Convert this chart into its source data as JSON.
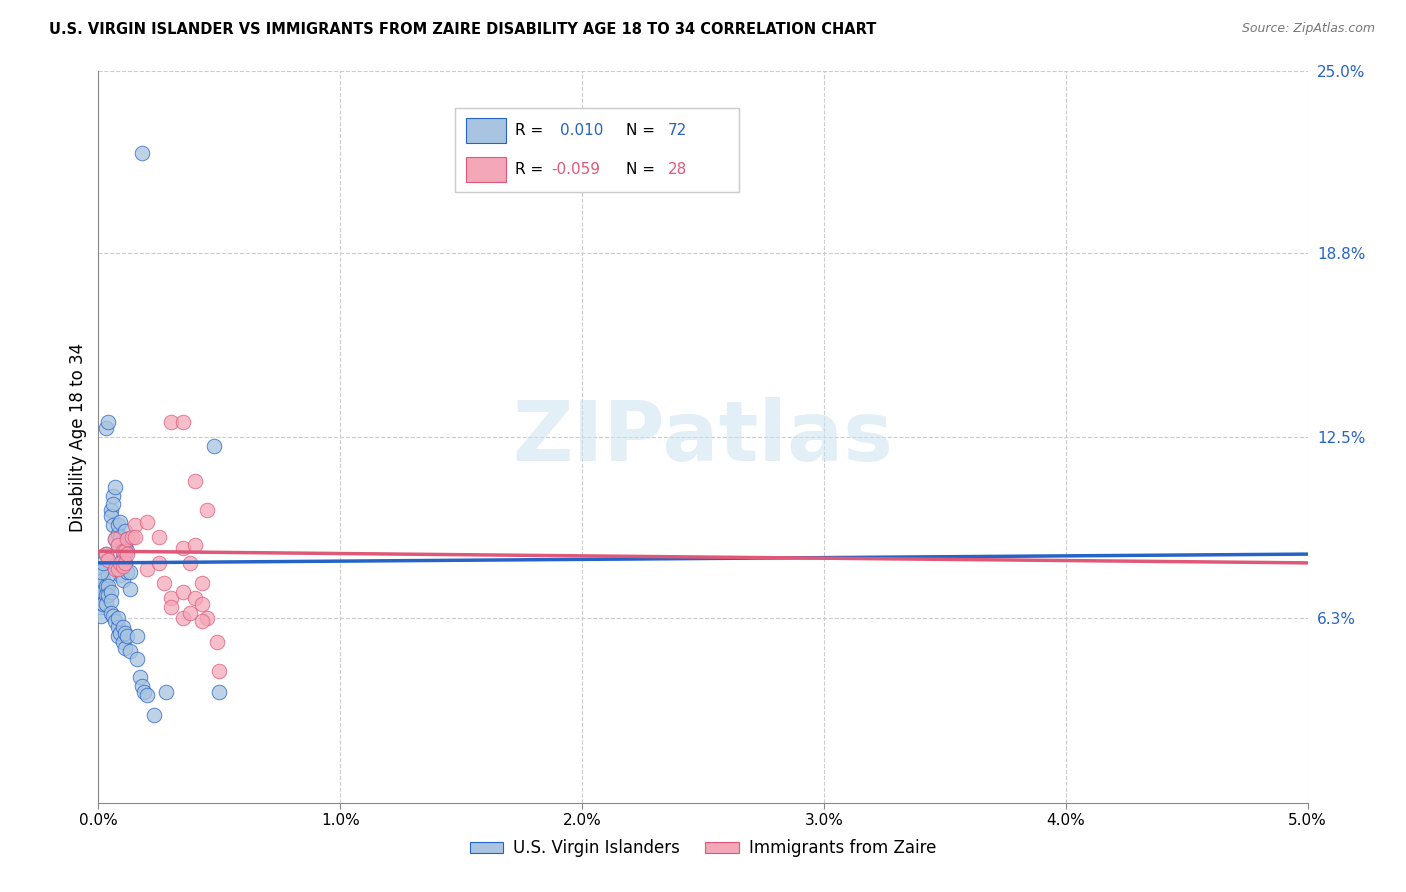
{
  "title": "U.S. VIRGIN ISLANDER VS IMMIGRANTS FROM ZAIRE DISABILITY AGE 18 TO 34 CORRELATION CHART",
  "source": "Source: ZipAtlas.com",
  "ylabel": "Disability Age 18 to 34",
  "xlim": [
    0.0,
    0.05
  ],
  "ylim": [
    0.0,
    0.25
  ],
  "x_ticks": [
    0.0,
    0.01,
    0.02,
    0.03,
    0.04,
    0.05
  ],
  "x_tick_labels": [
    "0.0%",
    "1.0%",
    "2.0%",
    "3.0%",
    "4.0%",
    "5.0%"
  ],
  "y_tick_labels_right": [
    "6.3%",
    "12.5%",
    "18.8%",
    "25.0%"
  ],
  "y_ticks_right": [
    0.063,
    0.125,
    0.188,
    0.25
  ],
  "watermark": "ZIPatlas",
  "color_blue": "#a8c4e0",
  "color_pink": "#f4a7b9",
  "line_color_blue": "#2563c7",
  "line_color_pink": "#e05878",
  "blue_scatter": [
    [
      0.0003,
      0.085
    ],
    [
      0.0004,
      0.083
    ],
    [
      0.0003,
      0.128
    ],
    [
      0.0004,
      0.13
    ],
    [
      0.0005,
      0.1
    ],
    [
      0.0005,
      0.098
    ],
    [
      0.0006,
      0.105
    ],
    [
      0.0006,
      0.102
    ],
    [
      0.0006,
      0.095
    ],
    [
      0.0007,
      0.108
    ],
    [
      0.0007,
      0.09
    ],
    [
      0.0008,
      0.092
    ],
    [
      0.0008,
      0.088
    ],
    [
      0.0008,
      0.095
    ],
    [
      0.0009,
      0.096
    ],
    [
      0.0009,
      0.091
    ],
    [
      0.0009,
      0.078
    ],
    [
      0.001,
      0.085
    ],
    [
      0.001,
      0.083
    ],
    [
      0.001,
      0.076
    ],
    [
      0.0011,
      0.093
    ],
    [
      0.0011,
      0.088
    ],
    [
      0.0011,
      0.082
    ],
    [
      0.0012,
      0.09
    ],
    [
      0.0012,
      0.086
    ],
    [
      0.0012,
      0.079
    ],
    [
      0.0013,
      0.079
    ],
    [
      0.0013,
      0.073
    ],
    [
      0.0001,
      0.076
    ],
    [
      0.0001,
      0.073
    ],
    [
      0.0001,
      0.07
    ],
    [
      0.0002,
      0.08
    ],
    [
      0.0002,
      0.076
    ],
    [
      0.0002,
      0.072
    ],
    [
      0.0001,
      0.067
    ],
    [
      0.0001,
      0.064
    ],
    [
      0.0002,
      0.068
    ],
    [
      0.0003,
      0.074
    ],
    [
      0.0003,
      0.071
    ],
    [
      0.0003,
      0.068
    ],
    [
      0.0004,
      0.078
    ],
    [
      0.0004,
      0.074
    ],
    [
      0.0004,
      0.071
    ],
    [
      0.0005,
      0.072
    ],
    [
      0.0005,
      0.069
    ],
    [
      0.0005,
      0.065
    ],
    [
      0.0001,
      0.079
    ],
    [
      0.0002,
      0.082
    ],
    [
      0.0006,
      0.064
    ],
    [
      0.0007,
      0.062
    ],
    [
      0.0008,
      0.06
    ],
    [
      0.0008,
      0.063
    ],
    [
      0.0008,
      0.057
    ],
    [
      0.0009,
      0.058
    ],
    [
      0.001,
      0.06
    ],
    [
      0.001,
      0.055
    ],
    [
      0.0011,
      0.058
    ],
    [
      0.0011,
      0.053
    ],
    [
      0.0012,
      0.057
    ],
    [
      0.0013,
      0.052
    ],
    [
      0.0016,
      0.057
    ],
    [
      0.0016,
      0.049
    ],
    [
      0.0017,
      0.043
    ],
    [
      0.0018,
      0.04
    ],
    [
      0.0019,
      0.038
    ],
    [
      0.002,
      0.037
    ],
    [
      0.0028,
      0.038
    ],
    [
      0.005,
      0.038
    ],
    [
      0.0023,
      0.03
    ],
    [
      0.0048,
      0.122
    ],
    [
      0.0018,
      0.222
    ]
  ],
  "pink_scatter": [
    [
      0.0003,
      0.085
    ],
    [
      0.0004,
      0.083
    ],
    [
      0.0007,
      0.09
    ],
    [
      0.0007,
      0.08
    ],
    [
      0.0008,
      0.088
    ],
    [
      0.0008,
      0.08
    ],
    [
      0.0009,
      0.082
    ],
    [
      0.001,
      0.086
    ],
    [
      0.001,
      0.081
    ],
    [
      0.0011,
      0.086
    ],
    [
      0.0011,
      0.082
    ],
    [
      0.0012,
      0.09
    ],
    [
      0.0012,
      0.085
    ],
    [
      0.0014,
      0.091
    ],
    [
      0.0015,
      0.095
    ],
    [
      0.0015,
      0.091
    ],
    [
      0.002,
      0.096
    ],
    [
      0.0025,
      0.091
    ],
    [
      0.003,
      0.13
    ],
    [
      0.0035,
      0.13
    ],
    [
      0.002,
      0.08
    ],
    [
      0.0025,
      0.082
    ],
    [
      0.0027,
      0.075
    ],
    [
      0.003,
      0.07
    ],
    [
      0.003,
      0.067
    ],
    [
      0.0035,
      0.063
    ],
    [
      0.0035,
      0.072
    ],
    [
      0.004,
      0.11
    ],
    [
      0.0045,
      0.1
    ],
    [
      0.0035,
      0.087
    ],
    [
      0.004,
      0.088
    ],
    [
      0.0038,
      0.082
    ],
    [
      0.004,
      0.07
    ],
    [
      0.0043,
      0.075
    ],
    [
      0.0038,
      0.065
    ],
    [
      0.0043,
      0.068
    ],
    [
      0.0045,
      0.063
    ],
    [
      0.0043,
      0.062
    ],
    [
      0.0049,
      0.055
    ],
    [
      0.005,
      0.045
    ]
  ],
  "blue_line": [
    0.0,
    0.082,
    0.05,
    0.085
  ],
  "pink_line": [
    0.0,
    0.086,
    0.05,
    0.082
  ]
}
